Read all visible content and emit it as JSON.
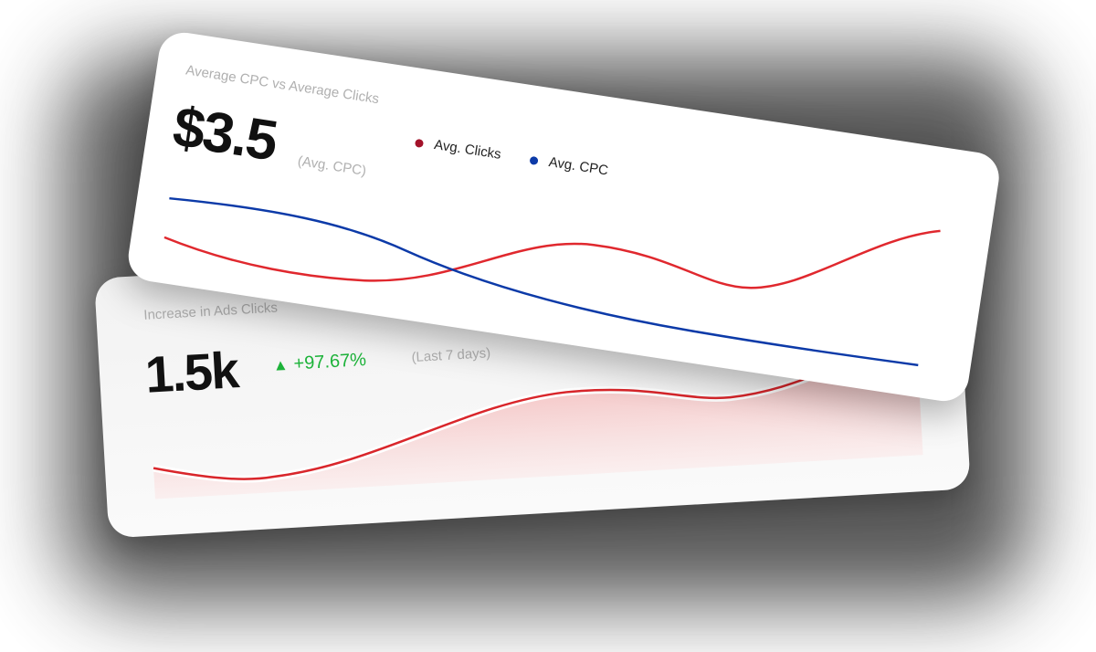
{
  "back_card": {
    "title": "Increase in Ads Clicks",
    "value": "1.5k",
    "change": "+97.67%",
    "period": "(Last 7 days)"
  },
  "front_card": {
    "title": "Average CPC vs Average Clicks",
    "value": "$3.5",
    "value_note": "(Avg. CPC)",
    "legend": [
      {
        "name": "Avg. Clicks",
        "color": "#a3122a"
      },
      {
        "name": "Avg. CPC",
        "color": "#0c3aa8"
      }
    ]
  }
}
